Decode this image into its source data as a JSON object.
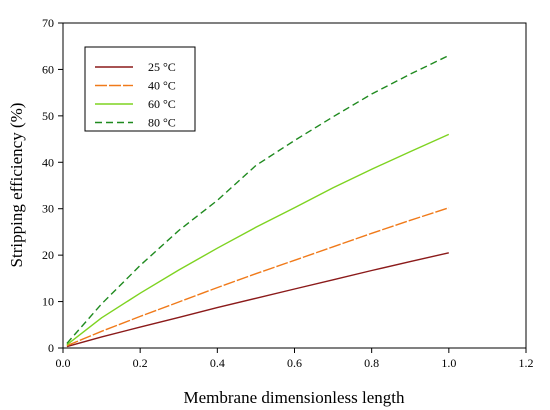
{
  "chart_data": {
    "type": "line",
    "xlabel": "Membrane dimensionless length",
    "ylabel": "Stripping efficiency (%)",
    "xlim": [
      0,
      1.2
    ],
    "ylim": [
      0,
      70
    ],
    "xticks": [
      0,
      0.2,
      0.4,
      0.6,
      0.8,
      1.0,
      1.2
    ],
    "xtick_labels": [
      "0.0",
      "0.2",
      "0.4",
      "0.6",
      "0.8",
      "1.0",
      "1.2"
    ],
    "yticks": [
      0,
      10,
      20,
      30,
      40,
      50,
      60,
      70
    ],
    "ytick_labels": [
      "0",
      "10",
      "20",
      "30",
      "40",
      "50",
      "60",
      "70"
    ],
    "grid": false,
    "legend_position": "top-left",
    "series": [
      {
        "name": "25 °C",
        "color": "#8b1a1a",
        "dash": "solid",
        "x": [
          0.01,
          0.1,
          0.2,
          0.3,
          0.4,
          0.5,
          0.6,
          0.7,
          0.8,
          0.9,
          1.0
        ],
        "y": [
          0.3,
          2.4,
          4.5,
          6.6,
          8.7,
          10.7,
          12.7,
          14.7,
          16.7,
          18.6,
          20.5
        ]
      },
      {
        "name": "40 °C",
        "color": "#f07a1a",
        "dash": "long-dash",
        "x": [
          0.01,
          0.1,
          0.2,
          0.3,
          0.4,
          0.5,
          0.6,
          0.7,
          0.8,
          0.9,
          1.0
        ],
        "y": [
          0.5,
          3.6,
          6.8,
          9.9,
          13.0,
          16.0,
          18.9,
          21.8,
          24.7,
          27.5,
          30.2
        ]
      },
      {
        "name": "60 °C",
        "color": "#7ed321",
        "dash": "solid",
        "x": [
          0.01,
          0.1,
          0.2,
          0.3,
          0.4,
          0.5,
          0.6,
          0.7,
          0.8,
          0.9,
          1.0
        ],
        "y": [
          0.7,
          6.5,
          11.8,
          16.8,
          21.5,
          26.0,
          30.2,
          34.5,
          38.5,
          42.3,
          46.0
        ]
      },
      {
        "name": "80 °C",
        "color": "#1f8a1f",
        "dash": "dashed",
        "x": [
          0.01,
          0.1,
          0.2,
          0.3,
          0.4,
          0.5,
          0.6,
          0.7,
          0.8,
          0.9,
          1.0
        ],
        "y": [
          1.0,
          9.5,
          17.8,
          25.3,
          31.8,
          39.3,
          44.7,
          49.8,
          54.7,
          59.0,
          63.0
        ]
      }
    ]
  }
}
